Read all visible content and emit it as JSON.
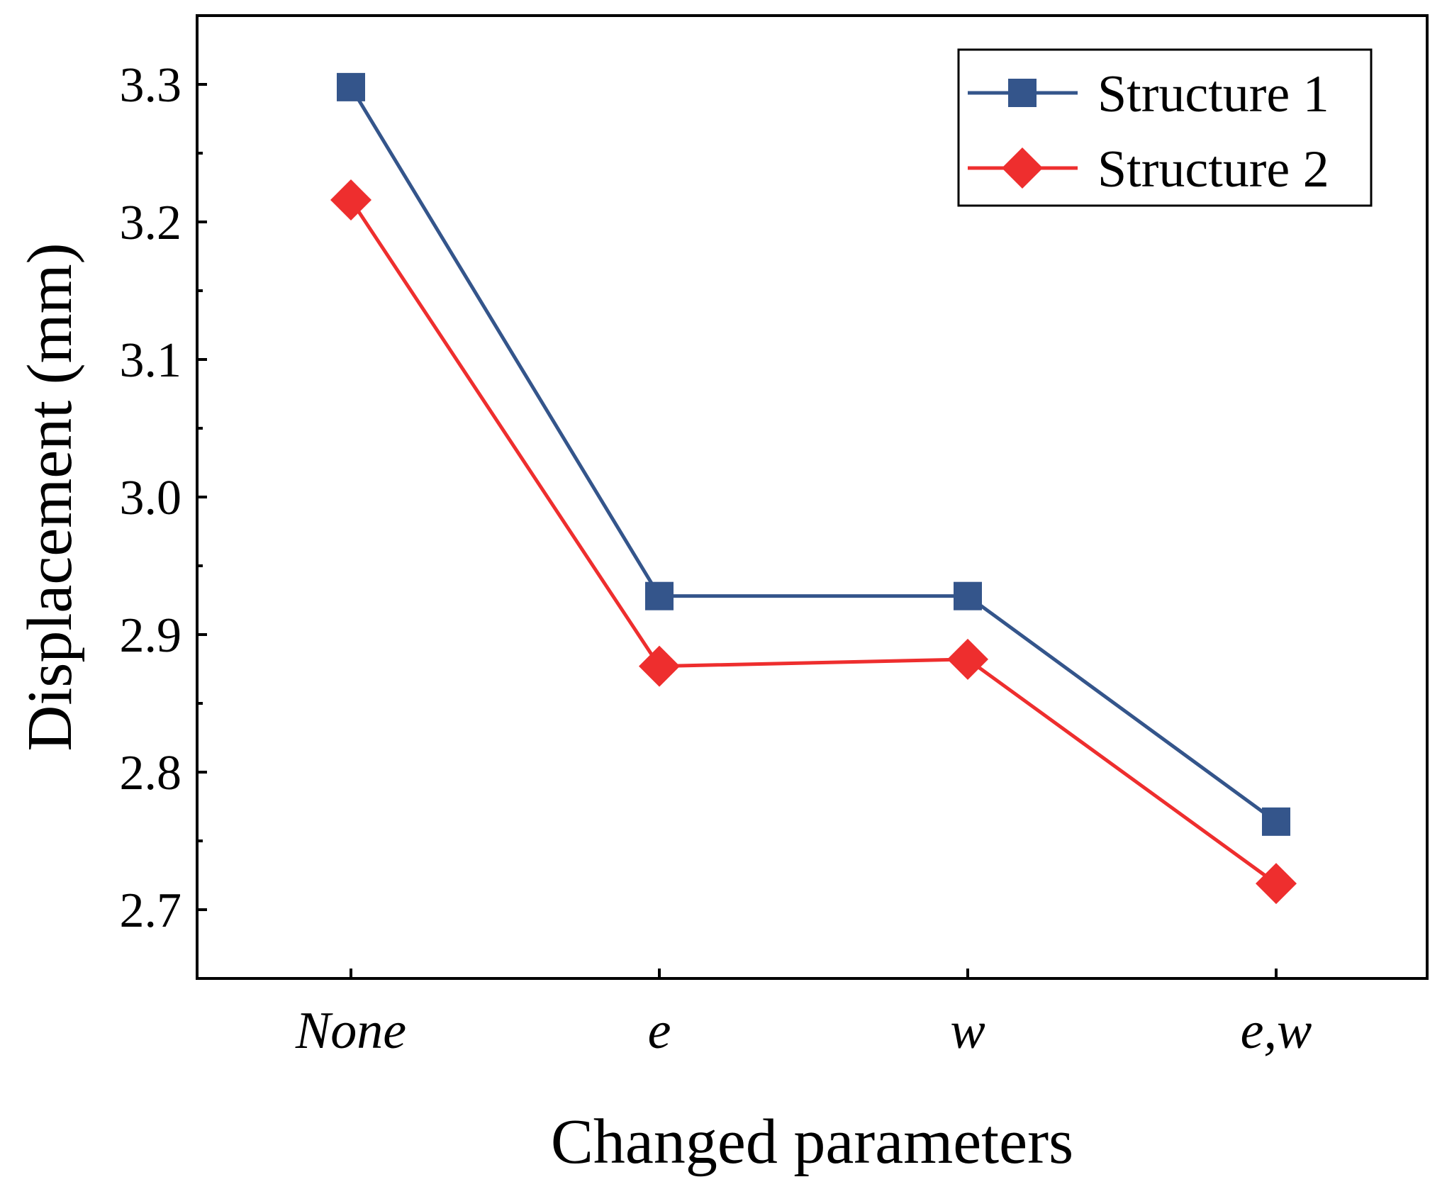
{
  "chart_data": {
    "type": "line",
    "title": "",
    "xlabel": "Changed parameters",
    "ylabel": "Displacement (mm)",
    "categories": [
      "None",
      "e",
      "w",
      "e,w"
    ],
    "category_style": "italic",
    "ylim": [
      2.65,
      3.35
    ],
    "yticks": [
      2.7,
      2.8,
      2.9,
      3.0,
      3.1,
      3.2,
      3.3
    ],
    "ytick_labels": [
      "2.7",
      "2.8",
      "2.9",
      "3.0",
      "3.1",
      "3.2",
      "3.3"
    ],
    "minor_yticks": [
      2.75,
      2.85,
      2.95,
      3.05,
      3.15,
      3.25
    ],
    "grid": false,
    "legend_position": "top-right",
    "series": [
      {
        "name": "Structure 1",
        "marker": "square",
        "color": "#34558b",
        "values": [
          3.298,
          2.928,
          2.928,
          2.764
        ]
      },
      {
        "name": "Structure 2",
        "marker": "diamond",
        "color": "#ee2e2e",
        "values": [
          3.216,
          2.877,
          2.882,
          2.719
        ]
      }
    ]
  }
}
